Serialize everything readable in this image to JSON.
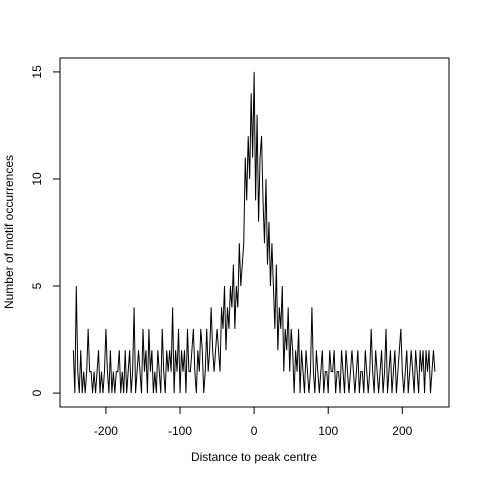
{
  "chart_data": {
    "type": "line",
    "x_label": "Distance to peak centre",
    "y_label": "Number of motif occurrences",
    "x": [
      -244,
      -242,
      -240,
      -238,
      -236,
      -234,
      -232,
      -230,
      -228,
      -226,
      -224,
      -222,
      -220,
      -218,
      -216,
      -214,
      -212,
      -210,
      -208,
      -206,
      -204,
      -202,
      -200,
      -198,
      -196,
      -194,
      -192,
      -190,
      -188,
      -186,
      -184,
      -182,
      -180,
      -178,
      -176,
      -174,
      -172,
      -170,
      -168,
      -166,
      -164,
      -162,
      -160,
      -158,
      -156,
      -154,
      -152,
      -150,
      -148,
      -146,
      -144,
      -142,
      -140,
      -138,
      -136,
      -134,
      -132,
      -130,
      -128,
      -126,
      -124,
      -122,
      -120,
      -118,
      -116,
      -114,
      -112,
      -110,
      -108,
      -106,
      -104,
      -102,
      -100,
      -98,
      -96,
      -94,
      -92,
      -90,
      -88,
      -86,
      -84,
      -82,
      -80,
      -78,
      -76,
      -74,
      -72,
      -70,
      -68,
      -66,
      -64,
      -62,
      -60,
      -58,
      -56,
      -54,
      -52,
      -50,
      -48,
      -46,
      -44,
      -42,
      -40,
      -38,
      -36,
      -34,
      -32,
      -30,
      -28,
      -26,
      -24,
      -22,
      -20,
      -18,
      -16,
      -14,
      -12,
      -10,
      -8,
      -6,
      -4,
      -2,
      0,
      2,
      4,
      6,
      8,
      10,
      12,
      14,
      16,
      18,
      20,
      22,
      24,
      26,
      28,
      30,
      32,
      34,
      36,
      38,
      40,
      42,
      44,
      46,
      48,
      50,
      52,
      54,
      56,
      58,
      60,
      62,
      64,
      66,
      68,
      70,
      72,
      74,
      76,
      78,
      80,
      82,
      84,
      86,
      88,
      90,
      92,
      94,
      96,
      98,
      100,
      102,
      104,
      106,
      108,
      110,
      112,
      114,
      116,
      118,
      120,
      122,
      124,
      126,
      128,
      130,
      132,
      134,
      136,
      138,
      140,
      142,
      144,
      146,
      148,
      150,
      152,
      154,
      156,
      158,
      160,
      162,
      164,
      166,
      168,
      170,
      172,
      174,
      176,
      178,
      180,
      182,
      184,
      186,
      188,
      190,
      192,
      194,
      196,
      198,
      200,
      202,
      204,
      206,
      208,
      210,
      212,
      214,
      216,
      218,
      220,
      222,
      224,
      226,
      228,
      230,
      232,
      234,
      236,
      238,
      240,
      242,
      244
    ],
    "values": [
      2,
      0,
      5,
      1,
      0,
      2,
      0,
      1,
      0,
      1,
      3,
      1,
      1,
      0,
      1,
      0,
      1,
      2,
      0,
      1,
      0,
      1,
      3,
      1,
      0,
      2,
      0,
      1,
      0,
      1,
      1,
      2,
      0,
      1,
      0,
      2,
      0,
      1,
      2,
      0,
      1,
      4,
      0,
      1,
      2,
      1,
      0,
      3,
      1,
      2,
      0,
      3,
      1,
      2,
      0,
      1,
      0,
      2,
      1,
      0,
      3,
      1,
      0,
      2,
      1,
      2,
      1,
      4,
      0,
      2,
      1,
      3,
      0,
      2,
      1,
      2,
      0,
      3,
      1,
      1,
      2,
      3,
      1,
      0,
      2,
      1,
      3,
      2,
      0,
      1,
      3,
      1,
      2,
      4,
      2,
      1,
      2,
      3,
      2,
      1,
      4,
      3,
      5,
      2,
      4,
      3,
      5,
      4,
      6,
      3,
      5,
      4,
      7,
      5,
      6,
      7,
      11,
      9,
      12,
      10,
      14,
      11,
      15,
      9,
      13,
      8,
      11,
      12,
      9,
      7,
      10,
      6,
      8,
      5,
      7,
      5,
      3,
      6,
      2,
      4,
      3,
      5,
      1,
      3,
      2,
      4,
      1,
      3,
      2,
      0,
      2,
      1,
      3,
      0,
      2,
      1,
      0,
      2,
      1,
      0,
      1,
      4,
      1,
      0,
      2,
      1,
      0,
      1,
      2,
      0,
      1,
      1,
      0,
      2,
      1,
      1,
      2,
      0,
      1,
      1,
      0,
      2,
      1,
      0,
      2,
      1,
      0,
      1,
      2,
      1,
      0,
      1,
      2,
      0,
      1,
      1,
      0,
      2,
      1,
      0,
      1,
      3,
      1,
      0,
      2,
      1,
      0,
      1,
      2,
      0,
      1,
      3,
      0,
      1,
      2,
      0,
      1,
      2,
      0,
      1,
      2,
      3,
      1,
      0,
      1,
      2,
      0,
      1,
      2,
      1,
      0,
      2,
      1,
      0,
      2,
      1,
      2,
      0,
      2,
      1,
      2,
      0,
      1,
      2,
      1
    ],
    "color": "#000000",
    "xlim": [
      -262,
      263
    ],
    "xticks": [
      -200,
      -100,
      0,
      100,
      200
    ],
    "ylim": [
      -0.65,
      15.65
    ],
    "yticks": [
      0,
      5,
      10,
      15
    ],
    "grid": false
  }
}
